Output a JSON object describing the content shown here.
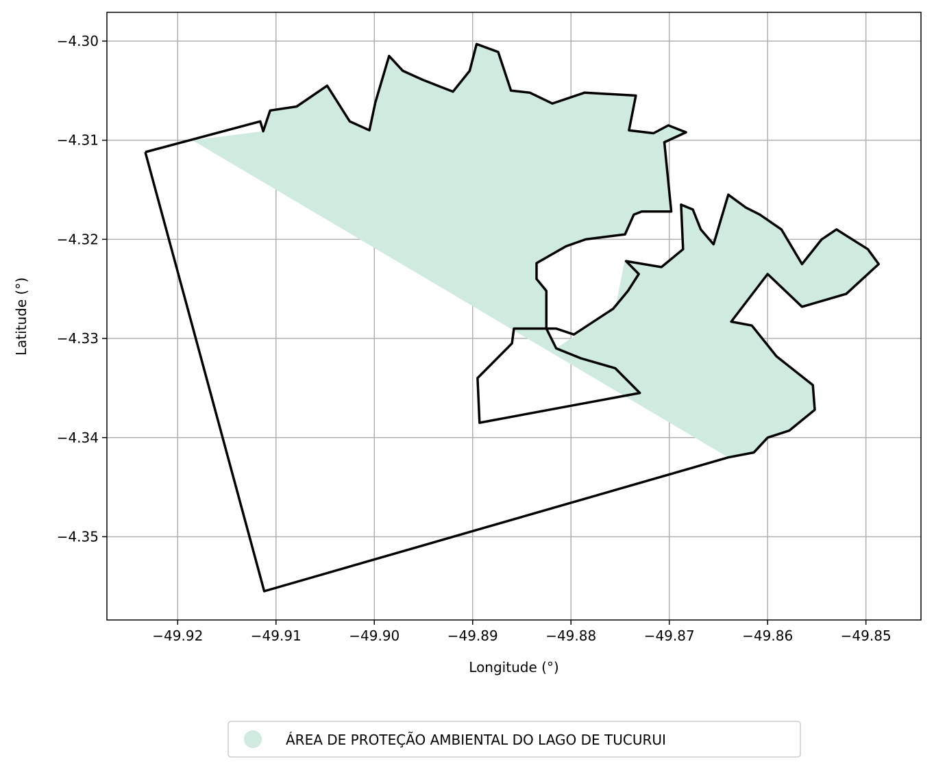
{
  "chart_data": {
    "type": "map",
    "xlabel": "Longitude (°)",
    "ylabel": "Latitude (°)",
    "xlim": [
      -49.9272,
      -49.8444
    ],
    "ylim": [
      -4.3584,
      -4.2971
    ],
    "grid": true,
    "x_ticks": [
      {
        "value": -49.92,
        "label": "−49.92"
      },
      {
        "value": -49.91,
        "label": "−49.91"
      },
      {
        "value": -49.9,
        "label": "−49.90"
      },
      {
        "value": -49.89,
        "label": "−49.89"
      },
      {
        "value": -49.88,
        "label": "−49.88"
      },
      {
        "value": -49.87,
        "label": "−49.87"
      },
      {
        "value": -49.86,
        "label": "−49.86"
      },
      {
        "value": -49.85,
        "label": "−49.85"
      }
    ],
    "y_ticks": [
      {
        "value": -4.3,
        "label": "−4.30"
      },
      {
        "value": -4.31,
        "label": "−4.31"
      },
      {
        "value": -4.32,
        "label": "−4.32"
      },
      {
        "value": -4.33,
        "label": "−4.33"
      },
      {
        "value": -4.34,
        "label": "−4.34"
      },
      {
        "value": -4.35,
        "label": "−4.35"
      }
    ],
    "legend": {
      "placement": "bottom-center",
      "entries": [
        {
          "label": "ÁREA DE PROTEÇÃO AMBIENTAL DO LAGO DE TUCURUI",
          "color": "#cfeade"
        }
      ]
    },
    "protected_area": {
      "name": "ÁREA DE PROTEÇÃO AMBIENTAL DO LAGO DE TUCURUI",
      "fill": "#cfeade",
      "coordinates": [
        [
          -49.9185,
          -4.31
        ],
        [
          -49.9113,
          -4.3091
        ],
        [
          -49.9106,
          -4.307
        ],
        [
          -49.9079,
          -4.3066
        ],
        [
          -49.9048,
          -4.3045
        ],
        [
          -49.9025,
          -4.3081
        ],
        [
          -49.9005,
          -4.309
        ],
        [
          -49.8999,
          -4.3062
        ],
        [
          -49.8985,
          -4.3015
        ],
        [
          -49.8971,
          -4.303
        ],
        [
          -49.8951,
          -4.3039
        ],
        [
          -49.892,
          -4.3051
        ],
        [
          -49.8903,
          -4.303
        ],
        [
          -49.8896,
          -4.3003
        ],
        [
          -49.8874,
          -4.3011
        ],
        [
          -49.8861,
          -4.305
        ],
        [
          -49.8842,
          -4.3052
        ],
        [
          -49.8819,
          -4.3063
        ],
        [
          -49.8786,
          -4.3052
        ],
        [
          -49.8734,
          -4.3055
        ],
        [
          -49.8741,
          -4.309
        ],
        [
          -49.8716,
          -4.3093
        ],
        [
          -49.8701,
          -4.3085
        ],
        [
          -49.8683,
          -4.3092
        ],
        [
          -49.8705,
          -4.3102
        ],
        [
          -49.8698,
          -4.3172
        ],
        [
          -49.8728,
          -4.3172
        ],
        [
          -49.8736,
          -4.3175
        ],
        [
          -49.8745,
          -4.3195
        ],
        [
          -49.8785,
          -4.32
        ],
        [
          -49.8805,
          -4.3207
        ],
        [
          -49.8835,
          -4.3224
        ],
        [
          -49.8835,
          -4.324
        ],
        [
          -49.8825,
          -4.3252
        ],
        [
          -49.8825,
          -4.329
        ],
        [
          -49.8815,
          -4.331
        ],
        [
          -49.8755,
          -4.327
        ],
        [
          -49.8745,
          -4.322
        ],
        [
          -49.8708,
          -4.3228
        ],
        [
          -49.8686,
          -4.321
        ],
        [
          -49.8688,
          -4.3165
        ],
        [
          -49.8676,
          -4.317
        ],
        [
          -49.8668,
          -4.319
        ],
        [
          -49.8655,
          -4.3205
        ],
        [
          -49.864,
          -4.3155
        ],
        [
          -49.8622,
          -4.3168
        ],
        [
          -49.8608,
          -4.3175
        ],
        [
          -49.8586,
          -4.319
        ],
        [
          -49.8565,
          -4.3225
        ],
        [
          -49.8545,
          -4.32
        ],
        [
          -49.853,
          -4.319
        ],
        [
          -49.8498,
          -4.321
        ],
        [
          -49.8487,
          -4.3225
        ],
        [
          -49.852,
          -4.3255
        ],
        [
          -49.8565,
          -4.3268
        ],
        [
          -49.86,
          -4.3235
        ],
        [
          -49.8637,
          -4.3283
        ],
        [
          -49.8616,
          -4.3287
        ],
        [
          -49.8591,
          -4.3318
        ],
        [
          -49.8554,
          -4.3347
        ],
        [
          -49.8552,
          -4.3372
        ],
        [
          -49.8578,
          -4.3393
        ],
        [
          -49.86,
          -4.34
        ],
        [
          -49.8614,
          -4.3415
        ],
        [
          -49.864,
          -4.342
        ]
      ]
    },
    "study_area_outline": {
      "color": "#000000",
      "coordinates": [
        [
          -49.9233,
          -4.3112
        ],
        [
          -49.9116,
          -4.3081
        ],
        [
          -49.9113,
          -4.3091
        ],
        [
          -49.9106,
          -4.307
        ],
        [
          -49.9079,
          -4.3066
        ],
        [
          -49.9048,
          -4.3045
        ],
        [
          -49.9025,
          -4.3081
        ],
        [
          -49.9005,
          -4.309
        ],
        [
          -49.8999,
          -4.3062
        ],
        [
          -49.8985,
          -4.3015
        ],
        [
          -49.8971,
          -4.303
        ],
        [
          -49.8951,
          -4.3039
        ],
        [
          -49.892,
          -4.3051
        ],
        [
          -49.8903,
          -4.303
        ],
        [
          -49.8896,
          -4.3003
        ],
        [
          -49.8874,
          -4.3011
        ],
        [
          -49.8861,
          -4.305
        ],
        [
          -49.8842,
          -4.3052
        ],
        [
          -49.8819,
          -4.3063
        ],
        [
          -49.8786,
          -4.3052
        ],
        [
          -49.8734,
          -4.3055
        ],
        [
          -49.8741,
          -4.309
        ],
        [
          -49.8716,
          -4.3093
        ],
        [
          -49.8701,
          -4.3085
        ],
        [
          -49.8683,
          -4.3092
        ],
        [
          -49.8705,
          -4.3102
        ],
        [
          -49.8698,
          -4.3172
        ],
        [
          -49.8728,
          -4.3172
        ],
        [
          -49.8736,
          -4.3175
        ],
        [
          -49.8745,
          -4.3195
        ],
        [
          -49.8785,
          -4.32
        ],
        [
          -49.8805,
          -4.3207
        ],
        [
          -49.8835,
          -4.3224
        ],
        [
          -49.8835,
          -4.324
        ],
        [
          -49.8825,
          -4.3252
        ],
        [
          -49.8825,
          -4.329
        ],
        [
          -49.8815,
          -4.331
        ],
        [
          -49.879,
          -4.332
        ],
        [
          -49.8755,
          -4.333
        ],
        [
          -49.873,
          -4.3355
        ],
        [
          -49.8893,
          -4.3385
        ],
        [
          -49.8895,
          -4.334
        ],
        [
          -49.886,
          -4.3305
        ],
        [
          -49.8858,
          -4.329
        ],
        [
          -49.8815,
          -4.329
        ],
        [
          -49.8797,
          -4.3296
        ],
        [
          -49.8757,
          -4.327
        ],
        [
          -49.8742,
          -4.3252
        ],
        [
          -49.8731,
          -4.3235
        ],
        [
          -49.8744,
          -4.3222
        ],
        [
          -49.8708,
          -4.3228
        ],
        [
          -49.8686,
          -4.321
        ],
        [
          -49.8688,
          -4.3165
        ],
        [
          -49.8676,
          -4.317
        ],
        [
          -49.8668,
          -4.319
        ],
        [
          -49.8655,
          -4.3205
        ],
        [
          -49.864,
          -4.3155
        ],
        [
          -49.8622,
          -4.3168
        ],
        [
          -49.8608,
          -4.3175
        ],
        [
          -49.8586,
          -4.319
        ],
        [
          -49.8565,
          -4.3225
        ],
        [
          -49.8545,
          -4.32
        ],
        [
          -49.853,
          -4.319
        ],
        [
          -49.8498,
          -4.321
        ],
        [
          -49.8487,
          -4.3225
        ],
        [
          -49.852,
          -4.3255
        ],
        [
          -49.8565,
          -4.3268
        ],
        [
          -49.86,
          -4.3235
        ],
        [
          -49.8637,
          -4.3283
        ],
        [
          -49.8616,
          -4.3287
        ],
        [
          -49.8591,
          -4.3318
        ],
        [
          -49.8554,
          -4.3347
        ],
        [
          -49.8552,
          -4.3372
        ],
        [
          -49.8578,
          -4.3393
        ],
        [
          -49.86,
          -4.34
        ],
        [
          -49.8614,
          -4.3415
        ],
        [
          -49.864,
          -4.342
        ],
        [
          -49.9112,
          -4.3555
        ],
        [
          -49.9233,
          -4.3112
        ]
      ]
    }
  }
}
